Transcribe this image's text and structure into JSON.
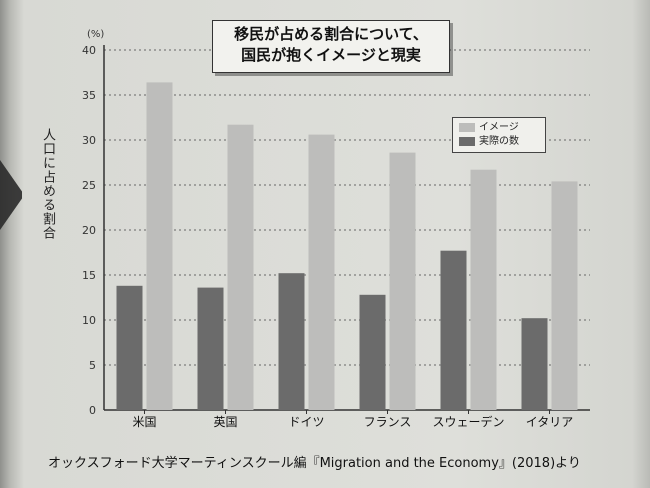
{
  "title_line1": "移民が占める割合について、",
  "title_line2": "国民が抱くイメージと現実",
  "y_axis_label": "人口に占める割合",
  "y_unit": "(%)",
  "source": "オックスフォード大学マーティンスクール編『Migration and the Economy』(2018)より",
  "legend": {
    "perception": "イメージ",
    "actual": "実際の数"
  },
  "colors": {
    "perception": "#bdbdbb",
    "actual": "#6b6b6b",
    "axis": "#333333",
    "grid": "#666666"
  },
  "chart_data": {
    "type": "bar",
    "categories": [
      "米国",
      "英国",
      "ドイツ",
      "フランス",
      "スウェーデン",
      "イタリア"
    ],
    "series": [
      {
        "name": "実際の数",
        "values": [
          13.8,
          13.6,
          15.2,
          12.8,
          17.7,
          10.2
        ]
      },
      {
        "name": "イメージ",
        "values": [
          36.4,
          31.7,
          30.6,
          28.6,
          26.7,
          25.4
        ]
      }
    ],
    "ylim": [
      0,
      40
    ],
    "yticks": [
      0,
      5,
      10,
      15,
      20,
      25,
      30,
      35,
      40
    ],
    "grid": true,
    "legend_position": "right"
  }
}
